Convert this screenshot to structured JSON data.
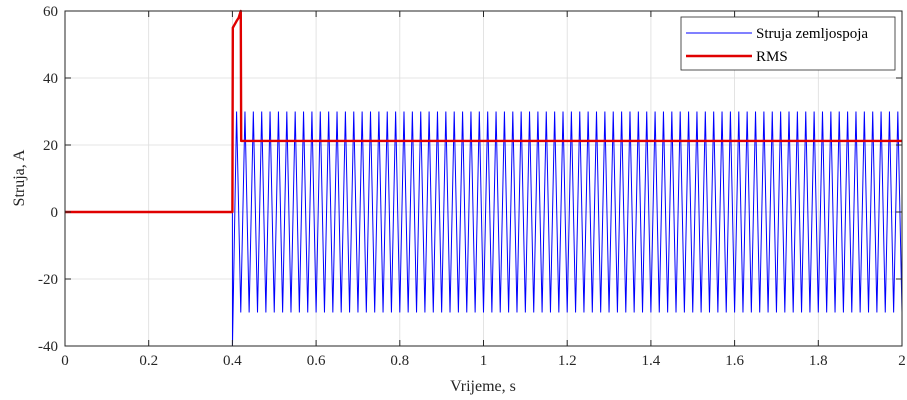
{
  "chart_data": {
    "type": "line",
    "xlabel": "Vrijeme, s",
    "ylabel": "Struja, A",
    "xlim": [
      0,
      2
    ],
    "ylim": [
      -40,
      60
    ],
    "xticks": [
      0,
      0.2,
      0.4,
      0.6,
      0.8,
      1,
      1.2,
      1.4,
      1.6,
      1.8,
      2
    ],
    "xtick_labels": [
      "0",
      "0.2",
      "0.4",
      "0.6",
      "0.8",
      "1",
      "1.2",
      "1.4",
      "1.6",
      "1.8",
      "2"
    ],
    "yticks": [
      -40,
      -20,
      0,
      20,
      40,
      60
    ],
    "ytick_labels": [
      "-40",
      "-20",
      "0",
      "20",
      "40",
      "60"
    ],
    "grid": true,
    "legend_position": "top-right",
    "series": [
      {
        "name": "Struja zemljospoja",
        "color": "#0000ff",
        "kind": "sinusoid",
        "zero_until": 0.4,
        "frequency_hz": 50,
        "amplitude": 30,
        "first_trough": -40,
        "first_peak": 30
      },
      {
        "name": "RMS",
        "color": "#e00000",
        "x": [
          0,
          0.4,
          0.401,
          0.41,
          0.415,
          0.42,
          0.421,
          2
        ],
        "values": [
          0,
          0,
          55,
          57,
          58,
          60,
          21.2,
          21.2
        ]
      }
    ]
  }
}
